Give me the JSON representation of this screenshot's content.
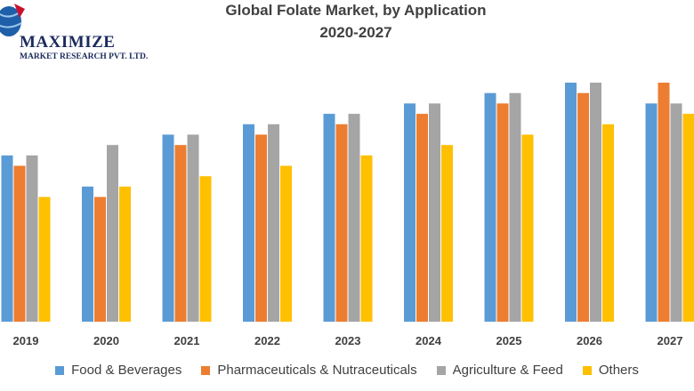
{
  "logo": {
    "name": "MAXIMIZE",
    "subtitle": "MARKET RESEARCH PVT. LTD."
  },
  "chart_data": {
    "type": "bar",
    "title": "Global Folate Market, by Application",
    "subtitle": "2020-2027",
    "categories": [
      "2019",
      "2020",
      "2021",
      "2022",
      "2023",
      "2024",
      "2025",
      "2026",
      "2027"
    ],
    "series": [
      {
        "name": "Food & Beverages",
        "color": "#5b9bd5",
        "values": [
          16,
          13,
          18,
          19,
          20,
          21,
          22,
          23,
          21
        ]
      },
      {
        "name": "Pharmaceuticals & Nutraceuticals",
        "color": "#ed7d31",
        "values": [
          15,
          12,
          17,
          18,
          19,
          20,
          21,
          22,
          23
        ]
      },
      {
        "name": "Agriculture & Feed",
        "color": "#a5a5a5",
        "values": [
          16,
          17,
          18,
          19,
          20,
          21,
          22,
          23,
          21
        ]
      },
      {
        "name": "Others",
        "color": "#ffc000",
        "values": [
          12,
          13,
          14,
          15,
          16,
          17,
          18,
          19,
          20
        ]
      }
    ],
    "ylim": [
      0,
      23
    ],
    "grid": false,
    "legend": "bottom"
  }
}
